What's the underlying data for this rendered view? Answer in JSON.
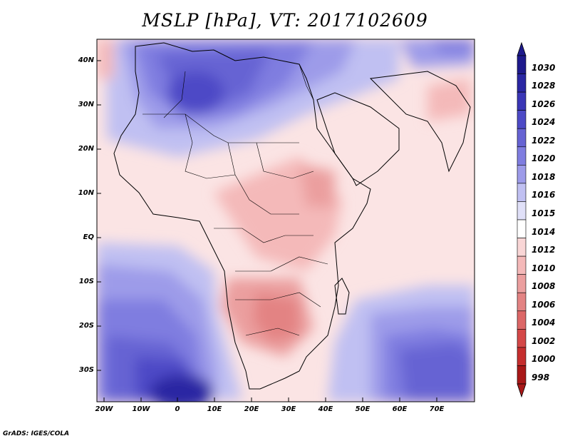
{
  "title": "MSLP [hPa], VT: 2017102609",
  "footer": "GrADS: IGES/COLA",
  "map": {
    "region": "Africa",
    "lon_range": [
      -25,
      80
    ],
    "lat_range": [
      -37,
      45
    ],
    "lat_ticks": [
      "40N",
      "30N",
      "20N",
      "10N",
      "EQ",
      "10S",
      "20S",
      "30S"
    ],
    "lon_ticks": [
      "20W",
      "10W",
      "0",
      "10E",
      "20E",
      "30E",
      "40E",
      "50E",
      "60E",
      "70E"
    ],
    "field": "MSLP",
    "units": "hPa"
  },
  "colorbar": {
    "levels": [
      "1030",
      "1028",
      "1026",
      "1024",
      "1022",
      "1020",
      "1018",
      "1016",
      "1015",
      "1014",
      "1012",
      "1010",
      "1008",
      "1006",
      "1004",
      "1002",
      "1000",
      "998"
    ],
    "colors": [
      "#1e1a8c",
      "#2a27a3",
      "#3a36b6",
      "#4d4ac6",
      "#6663d3",
      "#7f7de0",
      "#9d9be9",
      "#c0c0f2",
      "#e0e0f8",
      "#ffffff",
      "#f9d6d6",
      "#f4b9b9",
      "#eb9f9f",
      "#e38383",
      "#dc6767",
      "#d44848",
      "#c52e2e",
      "#a81818"
    ]
  }
}
